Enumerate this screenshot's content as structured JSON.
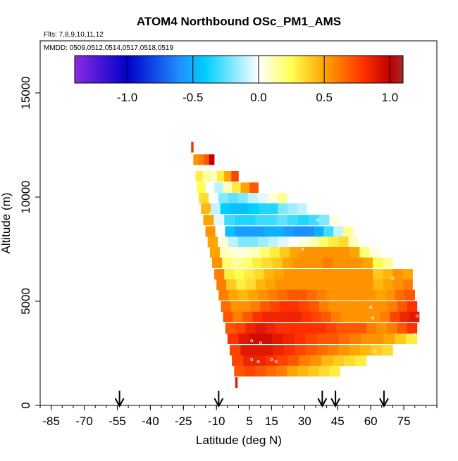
{
  "chart_data": {
    "type": "heatmap",
    "title": "ATOM4 Northbound OSc_PM1_AMS",
    "subtitle_flights": "Flts: 7,8,9,10,11,12",
    "subtitle_dates": "MMDD: 0509,0512,0514,0517,0518,0519",
    "xlabel": "Latitude (deg N)",
    "ylabel": "Altitude (m)",
    "xlim": [
      -90,
      90
    ],
    "ylim": [
      0,
      17500
    ],
    "x_tick_labels": [
      "-85",
      "-70",
      "-55",
      "-40",
      "-25",
      "-10",
      "5",
      "15",
      "30",
      "45",
      "60",
      "75"
    ],
    "x_tick_values": [
      -85,
      -70,
      -55,
      -40,
      -25,
      -10,
      5,
      15,
      30,
      45,
      60,
      75
    ],
    "x_minor_step": 5,
    "y_tick_labels": [
      "0",
      "5000",
      "10000",
      "15000"
    ],
    "y_tick_values": [
      0,
      5000,
      10000,
      15000
    ],
    "colorbar": {
      "range": [
        -1.4,
        1.1
      ],
      "tick_labels": [
        "-1.0",
        "-0.5",
        "0.0",
        "0.5",
        "1.0"
      ],
      "tick_values": [
        -1.0,
        -0.5,
        0.0,
        0.5,
        1.0
      ],
      "colors": [
        "#8a2be2",
        "#0000c8",
        "#1f8fff",
        "#00d0ff",
        "#ffffff",
        "#ffff50",
        "#ffa500",
        "#ff3000",
        "#c00000",
        "#a52a2a"
      ],
      "color_stops": [
        -1.4,
        -1.0,
        -0.6,
        -0.4,
        0.0,
        0.25,
        0.5,
        0.8,
        1.0,
        1.1
      ]
    },
    "arrows_latitude": [
      -54,
      -9,
      38,
      44,
      66
    ],
    "layers": [
      {
        "alt": 12400,
        "lat_min": -21.5,
        "lat_max": -20.5,
        "values": [
          0.8
        ]
      },
      {
        "alt": 11800,
        "lat_min": -20.5,
        "lat_max": -11,
        "values": [
          0.55,
          0.6,
          0.7,
          1.0
        ]
      },
      {
        "alt": 11000,
        "lat_min": -19.5,
        "lat_max": 0,
        "values": [
          0.3,
          0.15,
          0.1,
          0.3,
          0.5,
          0.75
        ]
      },
      {
        "alt": 10450,
        "lat_min": -19,
        "lat_max": 9,
        "values": [
          0.25,
          0.0,
          -0.1,
          0.1,
          0.3,
          0.5,
          0.7
        ]
      },
      {
        "alt": 9950,
        "lat_min": -18,
        "lat_max": 22,
        "values": [
          0.35,
          0.0,
          -0.2,
          -0.25,
          -0.2,
          -0.1,
          -0.05,
          0.05,
          0.15
        ]
      },
      {
        "alt": 9450,
        "lat_min": -17,
        "lat_max": 31,
        "values": [
          0.45,
          -0.1,
          -0.4,
          -0.45,
          -0.45,
          -0.4,
          -0.35,
          -0.35,
          -0.2,
          -0.15,
          -0.1
        ]
      },
      {
        "alt": 8900,
        "lat_min": -16,
        "lat_max": 46,
        "values": [
          0.5,
          -0.05,
          -0.3,
          -0.35,
          -0.35,
          -0.3,
          -0.3,
          -0.25,
          -0.3,
          -0.35,
          -0.3,
          -0.2,
          0.05
        ]
      },
      {
        "alt": 8350,
        "lat_min": -15,
        "lat_max": 52,
        "values": [
          0.55,
          0.0,
          -0.45,
          -0.55,
          -0.55,
          -0.55,
          -0.5,
          -0.5,
          -0.55,
          -0.6,
          -0.6,
          -0.5,
          -0.3,
          -0.1,
          0.15
        ]
      },
      {
        "alt": 7850,
        "lat_min": -14,
        "lat_max": 59,
        "values": [
          0.5,
          0.05,
          -0.1,
          -0.2,
          -0.2,
          -0.15,
          -0.1,
          -0.05,
          0.0,
          0.05,
          0.1,
          0.2,
          0.3,
          0.35,
          0.1,
          0.0
        ]
      },
      {
        "alt": 7350,
        "lat_min": -13,
        "lat_max": 64,
        "values": [
          0.5,
          0.1,
          0.05,
          0.05,
          0.1,
          0.2,
          0.3,
          0.4,
          0.5,
          0.55,
          0.55,
          0.55,
          0.55,
          0.55,
          0.5,
          0.2,
          0.05
        ]
      },
      {
        "alt": 6850,
        "lat_min": -12,
        "lat_max": 70,
        "values": [
          0.55,
          0.2,
          0.15,
          0.2,
          0.3,
          0.35,
          0.4,
          0.5,
          0.55,
          0.55,
          0.55,
          0.6,
          0.55,
          0.55,
          0.55,
          0.5,
          0.25,
          0.15
        ]
      },
      {
        "alt": 6300,
        "lat_min": -11,
        "lat_max": 79,
        "values": [
          0.6,
          0.3,
          0.25,
          0.3,
          0.35,
          0.45,
          0.5,
          0.55,
          0.55,
          0.55,
          0.55,
          0.55,
          0.55,
          0.55,
          0.55,
          0.55,
          0.4,
          0.45,
          0.55,
          0.5
        ]
      },
      {
        "alt": 5800,
        "lat_min": -10,
        "lat_max": 79,
        "values": [
          0.6,
          0.4,
          0.3,
          0.35,
          0.45,
          0.5,
          0.55,
          0.55,
          0.55,
          0.55,
          0.55,
          0.55,
          0.55,
          0.55,
          0.55,
          0.55,
          0.45,
          0.5,
          0.55,
          0.6
        ]
      },
      {
        "alt": 5300,
        "lat_min": -9,
        "lat_max": 80,
        "values": [
          0.6,
          0.5,
          0.45,
          0.5,
          0.55,
          0.6,
          0.65,
          0.7,
          0.7,
          0.65,
          0.6,
          0.55,
          0.55,
          0.55,
          0.55,
          0.55,
          0.5,
          0.55,
          0.65,
          0.7
        ]
      },
      {
        "alt": 4750,
        "lat_min": -8,
        "lat_max": 81,
        "values": [
          0.65,
          0.55,
          0.55,
          0.6,
          0.7,
          0.75,
          0.8,
          0.8,
          0.75,
          0.7,
          0.6,
          0.55,
          0.55,
          0.55,
          0.55,
          0.55,
          0.55,
          0.6,
          0.7,
          0.8
        ]
      },
      {
        "alt": 4250,
        "lat_min": -7,
        "lat_max": 82,
        "values": [
          0.7,
          0.6,
          0.7,
          0.8,
          0.85,
          0.85,
          0.85,
          0.85,
          0.8,
          0.75,
          0.7,
          0.6,
          0.55,
          0.55,
          0.55,
          0.55,
          0.6,
          0.75,
          0.85,
          0.9
        ]
      },
      {
        "alt": 3700,
        "lat_min": -6,
        "lat_max": 81,
        "values": [
          0.7,
          0.75,
          0.85,
          0.9,
          0.85,
          0.8,
          0.8,
          0.8,
          0.8,
          0.8,
          0.75,
          0.7,
          0.7,
          0.7,
          0.6,
          0.55,
          0.6,
          0.7,
          0.8
        ]
      },
      {
        "alt": 3200,
        "lat_min": -5,
        "lat_max": 81,
        "values": [
          0.8,
          0.9,
          0.95,
          0.95,
          0.9,
          0.85,
          0.8,
          0.75,
          0.7,
          0.7,
          0.65,
          0.6,
          0.55,
          0.55,
          0.5,
          0.4,
          0.3
        ]
      },
      {
        "alt": 2650,
        "lat_min": -4,
        "lat_max": 70,
        "values": [
          0.75,
          0.9,
          0.9,
          0.9,
          0.85,
          0.8,
          0.75,
          0.7,
          0.65,
          0.6,
          0.55,
          0.5,
          0.45,
          0.4,
          0.35
        ]
      },
      {
        "alt": 2150,
        "lat_min": -3,
        "lat_max": 58,
        "values": [
          0.75,
          0.85,
          0.85,
          0.8,
          0.75,
          0.7,
          0.6,
          0.55,
          0.45,
          0.4,
          0.35,
          0.3
        ]
      },
      {
        "alt": 1650,
        "lat_min": -2,
        "lat_max": 46,
        "values": [
          0.7,
          0.75,
          0.7,
          0.65,
          0.6,
          0.5,
          0.45,
          0.4,
          0.35,
          0.3
        ]
      },
      {
        "alt": 1100,
        "lat_min": -1.5,
        "lat_max": -0.5,
        "values": [
          0.9
        ]
      }
    ],
    "observation_points": [
      {
        "lat": -13,
        "alt": 9200
      },
      {
        "lat": -11,
        "alt": 11000
      },
      {
        "lat": 36,
        "alt": 8900
      },
      {
        "lat": 29,
        "alt": 7500
      },
      {
        "lat": 53,
        "alt": 8100
      },
      {
        "lat": 70,
        "alt": 6100
      },
      {
        "lat": 60,
        "alt": 4700
      },
      {
        "lat": 61,
        "alt": 4200
      },
      {
        "lat": 81,
        "alt": 4300
      },
      {
        "lat": 80,
        "alt": 3400
      },
      {
        "lat": 62,
        "alt": 2600
      },
      {
        "lat": 6,
        "alt": 3100
      },
      {
        "lat": 10,
        "alt": 3000
      },
      {
        "lat": 6,
        "alt": 2200
      },
      {
        "lat": 9,
        "alt": 2100
      },
      {
        "lat": 15,
        "alt": 2200
      },
      {
        "lat": 17,
        "alt": 2100
      }
    ]
  }
}
